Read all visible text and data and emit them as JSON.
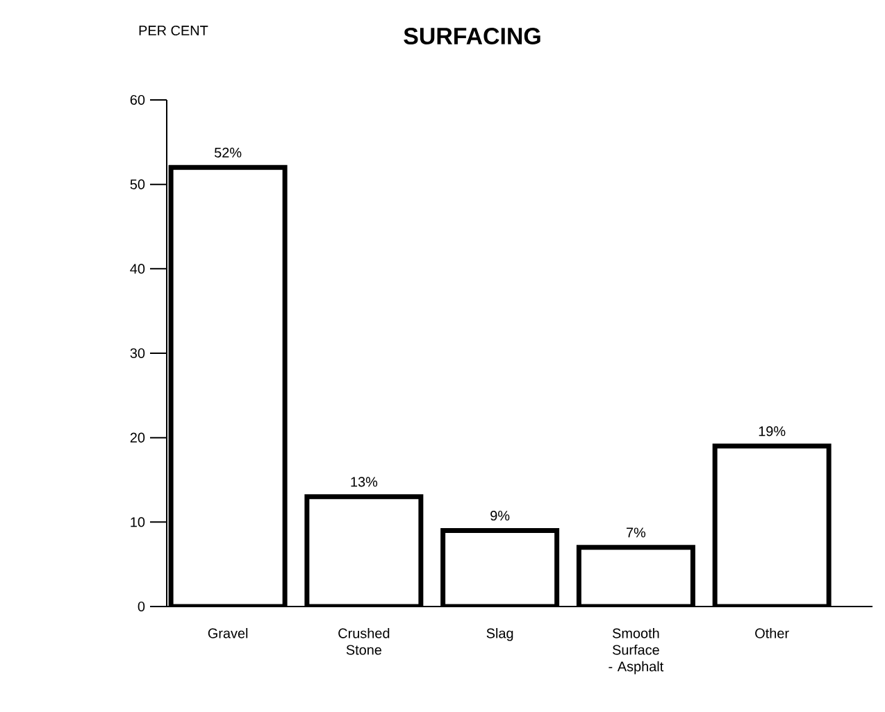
{
  "chart_data": {
    "type": "bar",
    "title": "SURFACING",
    "ylabel": "PER CENT",
    "categories": [
      "Gravel",
      "Crushed Stone",
      "Slag",
      "Smooth Surface - Asphalt",
      "Other"
    ],
    "values": [
      52,
      13,
      9,
      7,
      19
    ],
    "value_labels": [
      "52%",
      "13%",
      "9%",
      "7%",
      "19%"
    ],
    "color": "#ffffff",
    "ylim": [
      0,
      60
    ],
    "yticks": [
      0,
      10,
      20,
      30,
      40,
      50,
      60
    ]
  }
}
